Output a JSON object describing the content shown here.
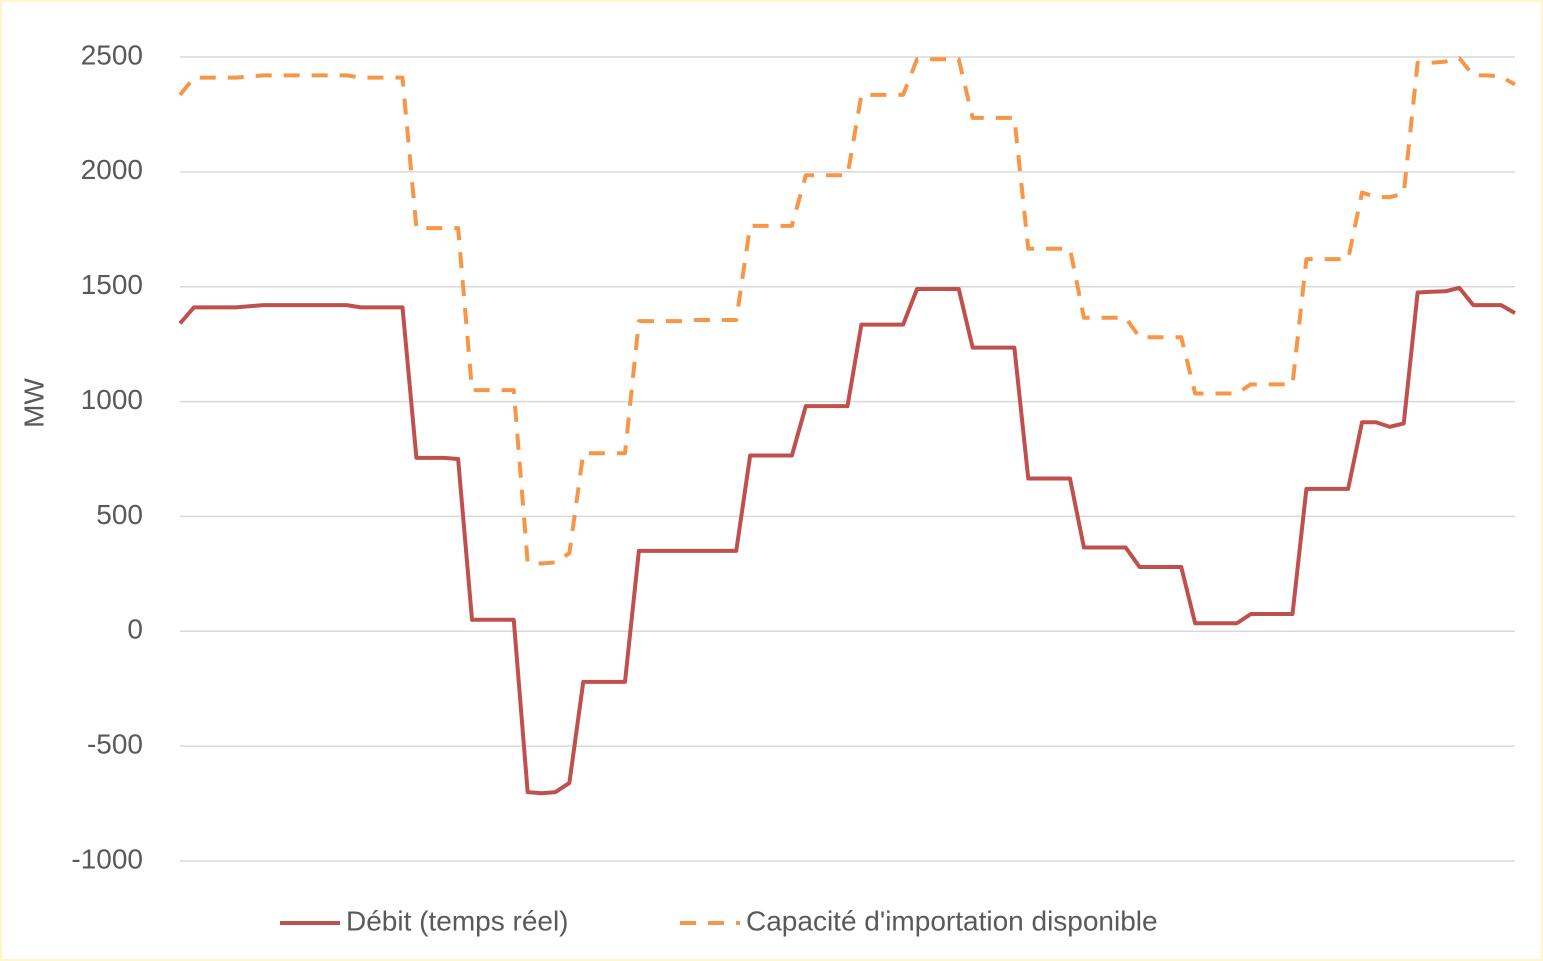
{
  "chart_data": {
    "type": "line",
    "y_label": "MW",
    "categories": [
      null,
      null,
      null,
      null,
      null,
      null,
      null,
      null,
      null,
      null,
      null,
      null,
      null,
      null,
      null,
      null,
      null,
      null,
      null,
      null,
      null,
      null,
      null,
      null,
      null,
      null,
      null,
      null,
      null,
      null,
      null,
      null,
      null,
      null,
      null,
      null,
      null,
      null,
      null,
      null,
      null,
      null,
      null,
      null,
      null,
      null,
      null,
      null,
      null,
      null,
      null,
      null,
      null,
      null,
      null,
      null,
      null,
      null,
      null,
      null,
      null,
      null,
      null,
      null,
      null,
      null,
      null,
      null,
      null,
      null,
      null,
      null,
      null,
      null,
      null,
      null,
      null,
      null,
      null,
      null,
      null,
      null,
      null,
      null,
      null,
      null,
      null,
      null,
      null,
      null,
      null,
      null,
      null,
      null,
      null,
      null,
      null
    ],
    "series": [
      {
        "name": "Débit (temps réel)",
        "color": "#c0504d",
        "line_style": "solid",
        "values": [
          1340,
          1410,
          1410,
          1410,
          1410,
          1415,
          1420,
          1420,
          1420,
          1420,
          1420,
          1420,
          1420,
          1410,
          1410,
          1410,
          1410,
          755,
          755,
          755,
          750,
          50,
          50,
          50,
          50,
          -700,
          -705,
          -700,
          -660,
          -220,
          -220,
          -220,
          -220,
          350,
          350,
          350,
          350,
          350,
          350,
          350,
          350,
          765,
          765,
          765,
          765,
          980,
          980,
          980,
          980,
          1335,
          1335,
          1335,
          1335,
          1490,
          1490,
          1490,
          1490,
          1235,
          1235,
          1235,
          1235,
          665,
          665,
          665,
          665,
          365,
          365,
          365,
          365,
          280,
          280,
          280,
          280,
          35,
          35,
          35,
          35,
          75,
          75,
          75,
          75,
          620,
          620,
          620,
          620,
          910,
          910,
          890,
          905,
          1475,
          1478,
          1480,
          1495,
          1420,
          1420,
          1420,
          1385
        ]
      },
      {
        "name": "Capacité d'importation disponible",
        "color": "#f79646",
        "line_style": "dashed",
        "values": [
          2335,
          2410,
          2410,
          2410,
          2410,
          2415,
          2420,
          2420,
          2420,
          2420,
          2420,
          2420,
          2420,
          2410,
          2410,
          2410,
          2410,
          1755,
          1755,
          1755,
          1755,
          1050,
          1050,
          1050,
          1050,
          300,
          295,
          300,
          340,
          775,
          775,
          775,
          775,
          1350,
          1350,
          1350,
          1350,
          1355,
          1355,
          1355,
          1355,
          1765,
          1765,
          1765,
          1765,
          1985,
          1985,
          1985,
          1985,
          2335,
          2335,
          2335,
          2335,
          2490,
          2490,
          2490,
          2490,
          2235,
          2235,
          2235,
          2235,
          1665,
          1665,
          1665,
          1665,
          1365,
          1365,
          1365,
          1365,
          1280,
          1280,
          1280,
          1280,
          1035,
          1035,
          1035,
          1035,
          1075,
          1075,
          1075,
          1075,
          1620,
          1620,
          1620,
          1620,
          1910,
          1890,
          1890,
          1905,
          2475,
          2475,
          2480,
          2495,
          2420,
          2420,
          2415,
          2380
        ]
      }
    ],
    "ylim": [
      -1000,
      2500
    ],
    "yticks": [
      -1000,
      -500,
      0,
      500,
      1000,
      1500,
      2000,
      2500
    ],
    "grid": true,
    "legend": "bottom"
  }
}
